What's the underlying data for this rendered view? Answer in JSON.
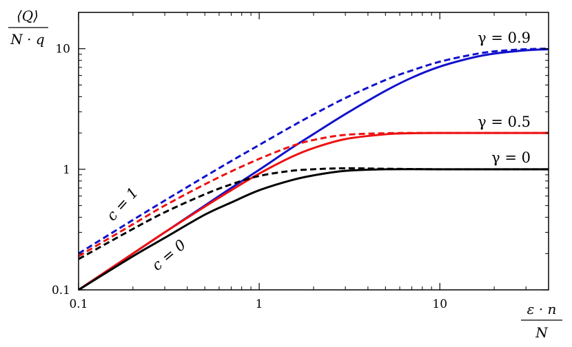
{
  "chart_data": {
    "type": "line",
    "xscale": "log",
    "yscale": "log",
    "xlim": [
      0.1,
      40
    ],
    "ylim": [
      0.1,
      20
    ],
    "grid": false,
    "x_ticks": [
      0.1,
      1,
      10
    ],
    "x_tick_labels": [
      "0.1",
      "1",
      "10"
    ],
    "y_ticks": [
      0.1,
      1,
      10
    ],
    "y_tick_labels": [
      "0.1",
      "1",
      "10"
    ],
    "ylabel": {
      "numerator": "⟨Q⟩",
      "denominator": "N · q"
    },
    "xlabel": {
      "numerator": "ε · n",
      "denominator": "N"
    },
    "annotations": {
      "gamma_09": "γ = 0.9",
      "gamma_05": "γ = 0.5",
      "gamma_0": "γ = 0",
      "c1": "c = 1",
      "c0": "c = 0"
    },
    "colors": {
      "gamma_0": "#000000",
      "gamma_05": "#ee1111",
      "gamma_09": "#1111cc"
    },
    "series": [
      {
        "gamma": 0.9,
        "c": 0,
        "style": "solid",
        "color": "#1111cc",
        "x": [
          0.1,
          0.2,
          0.3,
          0.5,
          0.7,
          1,
          1.5,
          2,
          3,
          5,
          7,
          10,
          15,
          20,
          30,
          40
        ],
        "y": [
          0.1,
          0.2,
          0.3,
          0.5,
          0.7,
          0.99,
          1.49,
          1.96,
          2.87,
          4.47,
          5.75,
          7.1,
          8.4,
          9.1,
          9.7,
          9.9
        ]
      },
      {
        "gamma": 0.9,
        "c": 1,
        "style": "dashed",
        "color": "#1111cc",
        "x": [
          0.1,
          0.2,
          0.3,
          0.5,
          0.7,
          1,
          1.5,
          2,
          3,
          5,
          7,
          10,
          15,
          20,
          30,
          40
        ],
        "y": [
          0.2,
          0.38,
          0.55,
          0.87,
          1.17,
          1.59,
          2.25,
          2.85,
          3.9,
          5.5,
          6.6,
          7.8,
          8.9,
          9.5,
          9.9,
          10
        ]
      },
      {
        "gamma": 0.5,
        "c": 0,
        "style": "solid",
        "color": "#ee1111",
        "x": [
          0.1,
          0.2,
          0.3,
          0.5,
          0.7,
          1,
          1.5,
          2,
          3,
          5,
          7,
          10,
          20,
          40
        ],
        "y": [
          0.1,
          0.2,
          0.3,
          0.49,
          0.67,
          0.92,
          1.26,
          1.5,
          1.78,
          1.95,
          1.99,
          2,
          2,
          2
        ]
      },
      {
        "gamma": 0.5,
        "c": 1,
        "style": "dashed",
        "color": "#ee1111",
        "x": [
          0.1,
          0.2,
          0.3,
          0.5,
          0.7,
          1,
          1.5,
          2,
          3,
          5,
          7,
          10,
          20,
          40
        ],
        "y": [
          0.19,
          0.35,
          0.5,
          0.75,
          0.96,
          1.22,
          1.55,
          1.75,
          1.93,
          1.99,
          2,
          2,
          2,
          2
        ]
      },
      {
        "gamma": 0,
        "c": 0,
        "style": "solid",
        "color": "#000000",
        "x": [
          0.1,
          0.2,
          0.3,
          0.5,
          0.7,
          1,
          1.5,
          2,
          3,
          5,
          10,
          20,
          40
        ],
        "y": [
          0.1,
          0.19,
          0.27,
          0.42,
          0.53,
          0.67,
          0.81,
          0.89,
          0.97,
          1,
          1,
          1,
          1
        ]
      },
      {
        "gamma": 0,
        "c": 1,
        "style": "dashed",
        "color": "#000000",
        "x": [
          0.1,
          0.2,
          0.3,
          0.5,
          0.7,
          1,
          1.5,
          2,
          3,
          5,
          10,
          20,
          40
        ],
        "y": [
          0.18,
          0.32,
          0.44,
          0.62,
          0.75,
          0.88,
          0.97,
          1,
          1.02,
          1.01,
          1,
          1,
          1
        ]
      }
    ]
  }
}
